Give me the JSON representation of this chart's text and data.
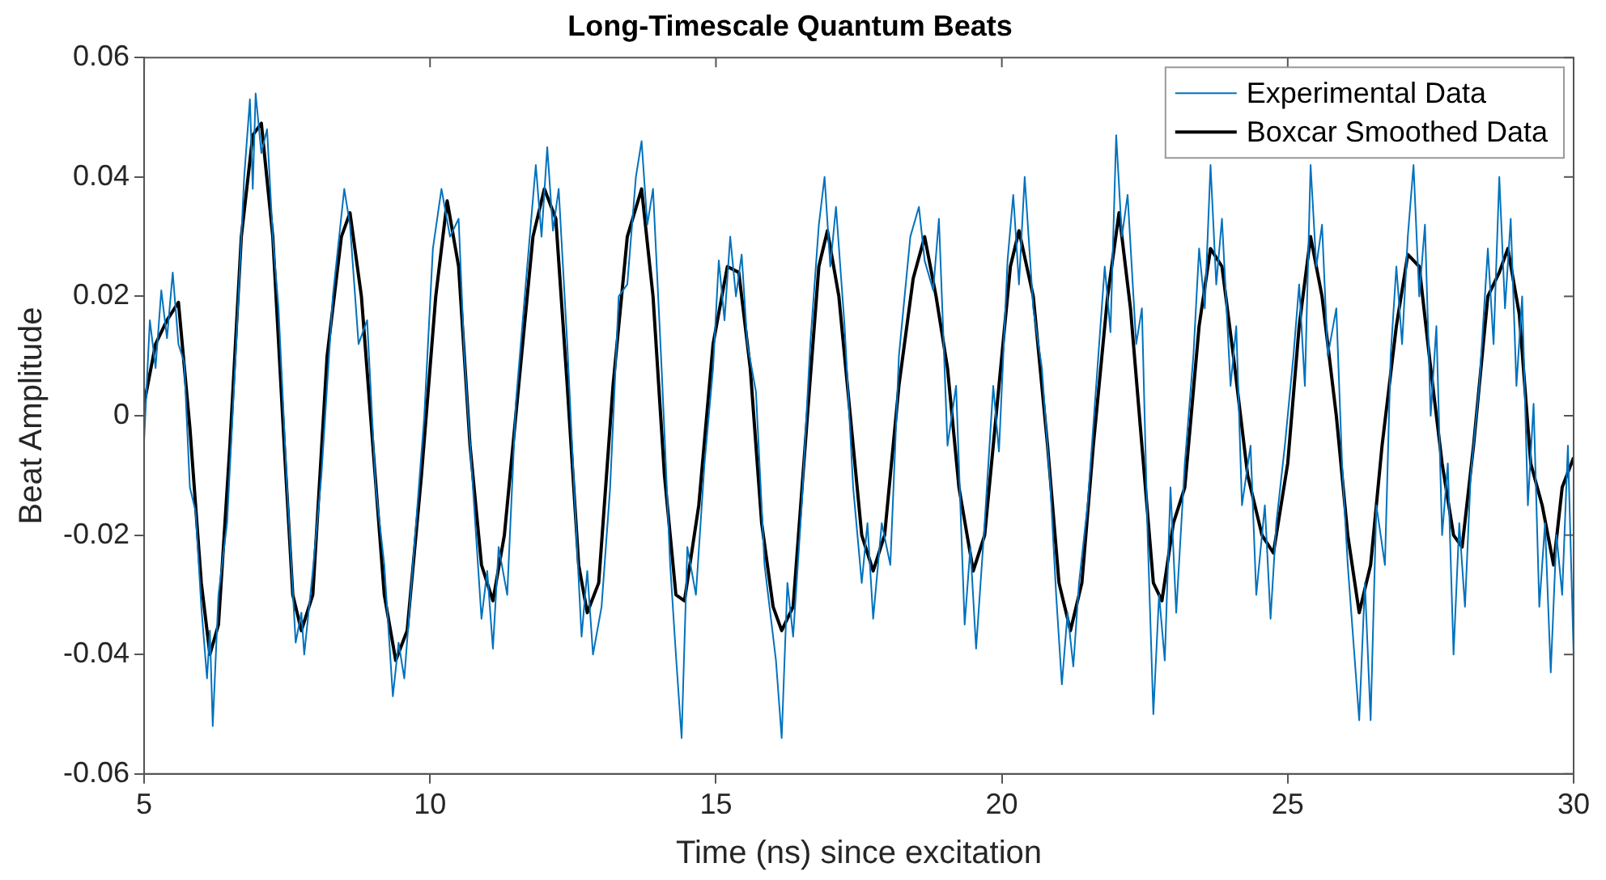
{
  "chart_data": {
    "type": "line",
    "title": "Long-Timescale Quantum Beats",
    "xlabel": "Time (ns) since excitation",
    "ylabel": "Beat Amplitude",
    "xlim": [
      5,
      30
    ],
    "ylim": [
      -0.06,
      0.06
    ],
    "xticks": [
      5,
      10,
      15,
      20,
      25,
      30
    ],
    "yticks": [
      -0.06,
      -0.04,
      -0.02,
      0,
      0.02,
      0.04,
      0.06
    ],
    "grid": false,
    "legend": "top right",
    "marker": "none",
    "line_style": "solid",
    "series": [
      {
        "name": "Experimental Data",
        "color": "#0072bd",
        "x": [
          5.0,
          5.1,
          5.2,
          5.3,
          5.4,
          5.5,
          5.6,
          5.7,
          5.8,
          5.9,
          6.0,
          6.1,
          6.15,
          6.2,
          6.3,
          6.45,
          6.6,
          6.75,
          6.85,
          6.9,
          6.95,
          7.05,
          7.15,
          7.25,
          7.35,
          7.5,
          7.65,
          7.75,
          7.8,
          7.95,
          8.1,
          8.3,
          8.5,
          8.6,
          8.75,
          8.9,
          9.05,
          9.2,
          9.35,
          9.45,
          9.55,
          9.7,
          9.9,
          10.05,
          10.2,
          10.35,
          10.5,
          10.6,
          10.75,
          10.9,
          11.0,
          11.1,
          11.2,
          11.35,
          11.5,
          11.7,
          11.85,
          11.95,
          12.05,
          12.15,
          12.25,
          12.4,
          12.55,
          12.65,
          12.75,
          12.85,
          13.0,
          13.15,
          13.3,
          13.45,
          13.6,
          13.7,
          13.8,
          13.9,
          14.05,
          14.2,
          14.3,
          14.4,
          14.5,
          14.65,
          14.8,
          14.95,
          15.05,
          15.15,
          15.25,
          15.35,
          15.45,
          15.55,
          15.7,
          15.85,
          15.95,
          16.05,
          16.15,
          16.25,
          16.35,
          16.5,
          16.65,
          16.8,
          16.9,
          17.0,
          17.1,
          17.25,
          17.4,
          17.55,
          17.65,
          17.75,
          17.9,
          18.05,
          18.2,
          18.4,
          18.55,
          18.65,
          18.8,
          18.9,
          19.05,
          19.2,
          19.35,
          19.45,
          19.55,
          19.7,
          19.85,
          19.95,
          20.1,
          20.2,
          20.3,
          20.4,
          20.55,
          20.7,
          20.85,
          20.95,
          21.05,
          21.15,
          21.25,
          21.35,
          21.5,
          21.65,
          21.8,
          21.9,
          22.0,
          22.1,
          22.2,
          22.35,
          22.45,
          22.55,
          22.65,
          22.75,
          22.85,
          22.95,
          23.05,
          23.2,
          23.35,
          23.45,
          23.55,
          23.65,
          23.75,
          23.85,
          24.0,
          24.1,
          24.2,
          24.35,
          24.45,
          24.6,
          24.7,
          24.8,
          24.95,
          25.1,
          25.2,
          25.3,
          25.4,
          25.5,
          25.6,
          25.7,
          25.85,
          25.95,
          26.05,
          26.15,
          26.25,
          26.35,
          26.45,
          26.55,
          26.7,
          26.8,
          26.9,
          27.0,
          27.1,
          27.2,
          27.3,
          27.4,
          27.5,
          27.6,
          27.7,
          27.8,
          27.9,
          28.0,
          28.1,
          28.2,
          28.35,
          28.5,
          28.6,
          28.7,
          28.8,
          28.9,
          29.0,
          29.1,
          29.2,
          29.3,
          29.4,
          29.5,
          29.6,
          29.7,
          29.8,
          29.9,
          30.0
        ],
        "values": [
          -0.004,
          0.016,
          0.008,
          0.021,
          0.013,
          0.024,
          0.012,
          0.009,
          -0.012,
          -0.016,
          -0.032,
          -0.044,
          -0.036,
          -0.052,
          -0.03,
          -0.018,
          0.01,
          0.04,
          0.053,
          0.038,
          0.054,
          0.044,
          0.048,
          0.03,
          0.018,
          -0.012,
          -0.038,
          -0.033,
          -0.04,
          -0.026,
          -0.01,
          0.02,
          0.038,
          0.032,
          0.012,
          0.016,
          -0.012,
          -0.025,
          -0.047,
          -0.038,
          -0.044,
          -0.025,
          0.0,
          0.028,
          0.038,
          0.03,
          0.033,
          0.01,
          -0.012,
          -0.034,
          -0.026,
          -0.039,
          -0.022,
          -0.03,
          0.002,
          0.025,
          0.042,
          0.03,
          0.045,
          0.031,
          0.038,
          0.012,
          -0.018,
          -0.037,
          -0.026,
          -0.04,
          -0.032,
          -0.012,
          0.02,
          0.022,
          0.04,
          0.046,
          0.032,
          0.038,
          0.008,
          -0.025,
          -0.04,
          -0.054,
          -0.022,
          -0.03,
          -0.008,
          0.008,
          0.026,
          0.016,
          0.03,
          0.02,
          0.027,
          0.012,
          0.004,
          -0.025,
          -0.033,
          -0.041,
          -0.054,
          -0.028,
          -0.037,
          -0.015,
          0.012,
          0.032,
          0.04,
          0.025,
          0.035,
          0.015,
          -0.012,
          -0.028,
          -0.018,
          -0.034,
          -0.018,
          -0.025,
          0.01,
          0.03,
          0.035,
          0.026,
          0.021,
          0.033,
          -0.005,
          0.005,
          -0.035,
          -0.022,
          -0.039,
          -0.018,
          0.005,
          -0.006,
          0.026,
          0.037,
          0.022,
          0.04,
          0.018,
          0.008,
          -0.012,
          -0.03,
          -0.045,
          -0.033,
          -0.042,
          -0.028,
          -0.015,
          0.005,
          0.025,
          0.014,
          0.047,
          0.03,
          0.037,
          0.012,
          0.018,
          -0.02,
          -0.05,
          -0.03,
          -0.041,
          -0.012,
          -0.033,
          -0.008,
          0.01,
          0.028,
          0.018,
          0.042,
          0.022,
          0.033,
          0.005,
          0.015,
          -0.015,
          -0.005,
          -0.03,
          -0.015,
          -0.034,
          -0.018,
          -0.005,
          0.01,
          0.022,
          0.005,
          0.042,
          0.025,
          0.032,
          0.01,
          0.018,
          -0.008,
          -0.025,
          -0.038,
          -0.051,
          -0.028,
          -0.051,
          -0.015,
          -0.025,
          0.01,
          0.025,
          0.012,
          0.03,
          0.042,
          0.02,
          0.032,
          0.0,
          0.015,
          -0.02,
          -0.008,
          -0.04,
          -0.018,
          -0.032,
          -0.01,
          0.005,
          0.028,
          0.012,
          0.04,
          0.018,
          0.033,
          0.005,
          0.02,
          -0.015,
          0.002,
          -0.032,
          -0.018,
          -0.043,
          -0.02,
          -0.03,
          -0.005,
          -0.04
        ]
      },
      {
        "name": "Boxcar Smoothed Data",
        "color": "#000000",
        "x": [
          5.0,
          5.2,
          5.4,
          5.6,
          5.8,
          6.0,
          6.15,
          6.3,
          6.5,
          6.7,
          6.9,
          7.05,
          7.25,
          7.45,
          7.6,
          7.75,
          7.95,
          8.2,
          8.45,
          8.6,
          8.8,
          9.0,
          9.2,
          9.4,
          9.6,
          9.85,
          10.1,
          10.3,
          10.5,
          10.7,
          10.9,
          11.1,
          11.3,
          11.6,
          11.8,
          12.0,
          12.2,
          12.4,
          12.6,
          12.75,
          12.95,
          13.2,
          13.45,
          13.7,
          13.9,
          14.1,
          14.3,
          14.45,
          14.7,
          14.95,
          15.2,
          15.4,
          15.6,
          15.8,
          16.0,
          16.15,
          16.35,
          16.6,
          16.8,
          16.95,
          17.15,
          17.35,
          17.55,
          17.75,
          17.95,
          18.2,
          18.45,
          18.65,
          18.85,
          19.05,
          19.25,
          19.5,
          19.7,
          19.95,
          20.15,
          20.3,
          20.55,
          20.8,
          21.0,
          21.2,
          21.4,
          21.6,
          21.85,
          22.05,
          22.25,
          22.45,
          22.65,
          22.8,
          23.0,
          23.2,
          23.45,
          23.65,
          23.85,
          24.05,
          24.3,
          24.55,
          24.75,
          25.0,
          25.2,
          25.4,
          25.6,
          25.85,
          26.05,
          26.25,
          26.45,
          26.65,
          26.9,
          27.1,
          27.3,
          27.5,
          27.7,
          27.9,
          28.05,
          28.25,
          28.5,
          28.7,
          28.85,
          29.05,
          29.25,
          29.45,
          29.65,
          29.8,
          30.0
        ],
        "values": [
          0.002,
          0.012,
          0.016,
          0.019,
          -0.002,
          -0.028,
          -0.04,
          -0.035,
          -0.005,
          0.03,
          0.047,
          0.049,
          0.03,
          -0.005,
          -0.03,
          -0.036,
          -0.03,
          0.01,
          0.03,
          0.034,
          0.02,
          -0.005,
          -0.03,
          -0.041,
          -0.036,
          -0.01,
          0.02,
          0.036,
          0.025,
          -0.005,
          -0.025,
          -0.031,
          -0.02,
          0.01,
          0.03,
          0.038,
          0.033,
          0.005,
          -0.025,
          -0.033,
          -0.028,
          0.005,
          0.03,
          0.038,
          0.02,
          -0.01,
          -0.03,
          -0.031,
          -0.015,
          0.012,
          0.025,
          0.024,
          0.008,
          -0.018,
          -0.032,
          -0.036,
          -0.032,
          0.0,
          0.025,
          0.031,
          0.02,
          0.0,
          -0.02,
          -0.026,
          -0.02,
          0.005,
          0.023,
          0.03,
          0.02,
          0.008,
          -0.012,
          -0.026,
          -0.02,
          0.005,
          0.025,
          0.031,
          0.02,
          -0.005,
          -0.028,
          -0.036,
          -0.028,
          -0.005,
          0.02,
          0.034,
          0.018,
          -0.005,
          -0.028,
          -0.031,
          -0.018,
          -0.012,
          0.015,
          0.028,
          0.025,
          0.01,
          -0.01,
          -0.02,
          -0.023,
          -0.008,
          0.015,
          0.03,
          0.02,
          0.0,
          -0.02,
          -0.033,
          -0.025,
          -0.005,
          0.015,
          0.027,
          0.025,
          0.008,
          -0.008,
          -0.02,
          -0.022,
          -0.005,
          0.02,
          0.024,
          0.028,
          0.017,
          -0.008,
          -0.015,
          -0.025,
          -0.012,
          -0.007
        ]
      }
    ]
  }
}
